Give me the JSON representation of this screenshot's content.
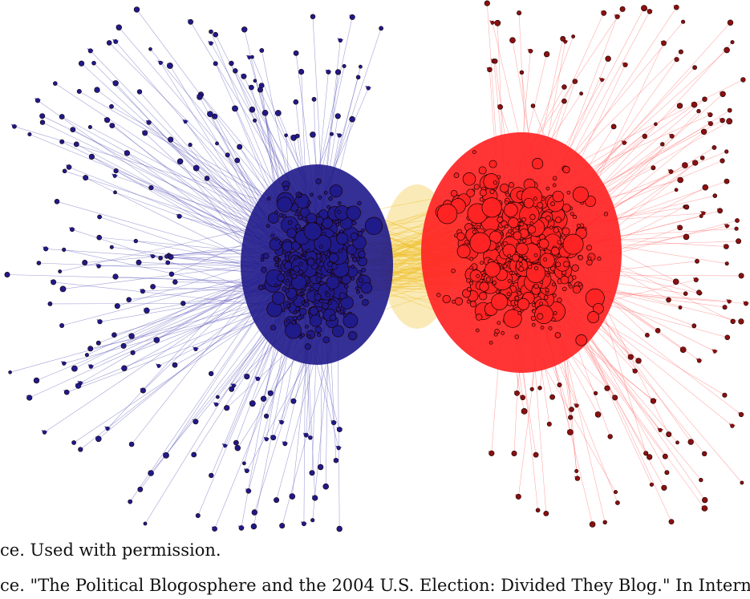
{
  "caption": {
    "line1": "ce.  Used with permission.",
    "line2": "ce. \"The Political Blogosphere and the 2004 U.S. Election: Divided They Blog.\" In Intern"
  },
  "colors": {
    "left_cluster": "#1f1a8a",
    "right_cluster": "#ff2424",
    "bridge": "#f0c232",
    "left_edge": "#5a55b8",
    "right_edge": "#ff6a6a",
    "node_outline": "#1a0000",
    "background": "#ffffff"
  }
}
